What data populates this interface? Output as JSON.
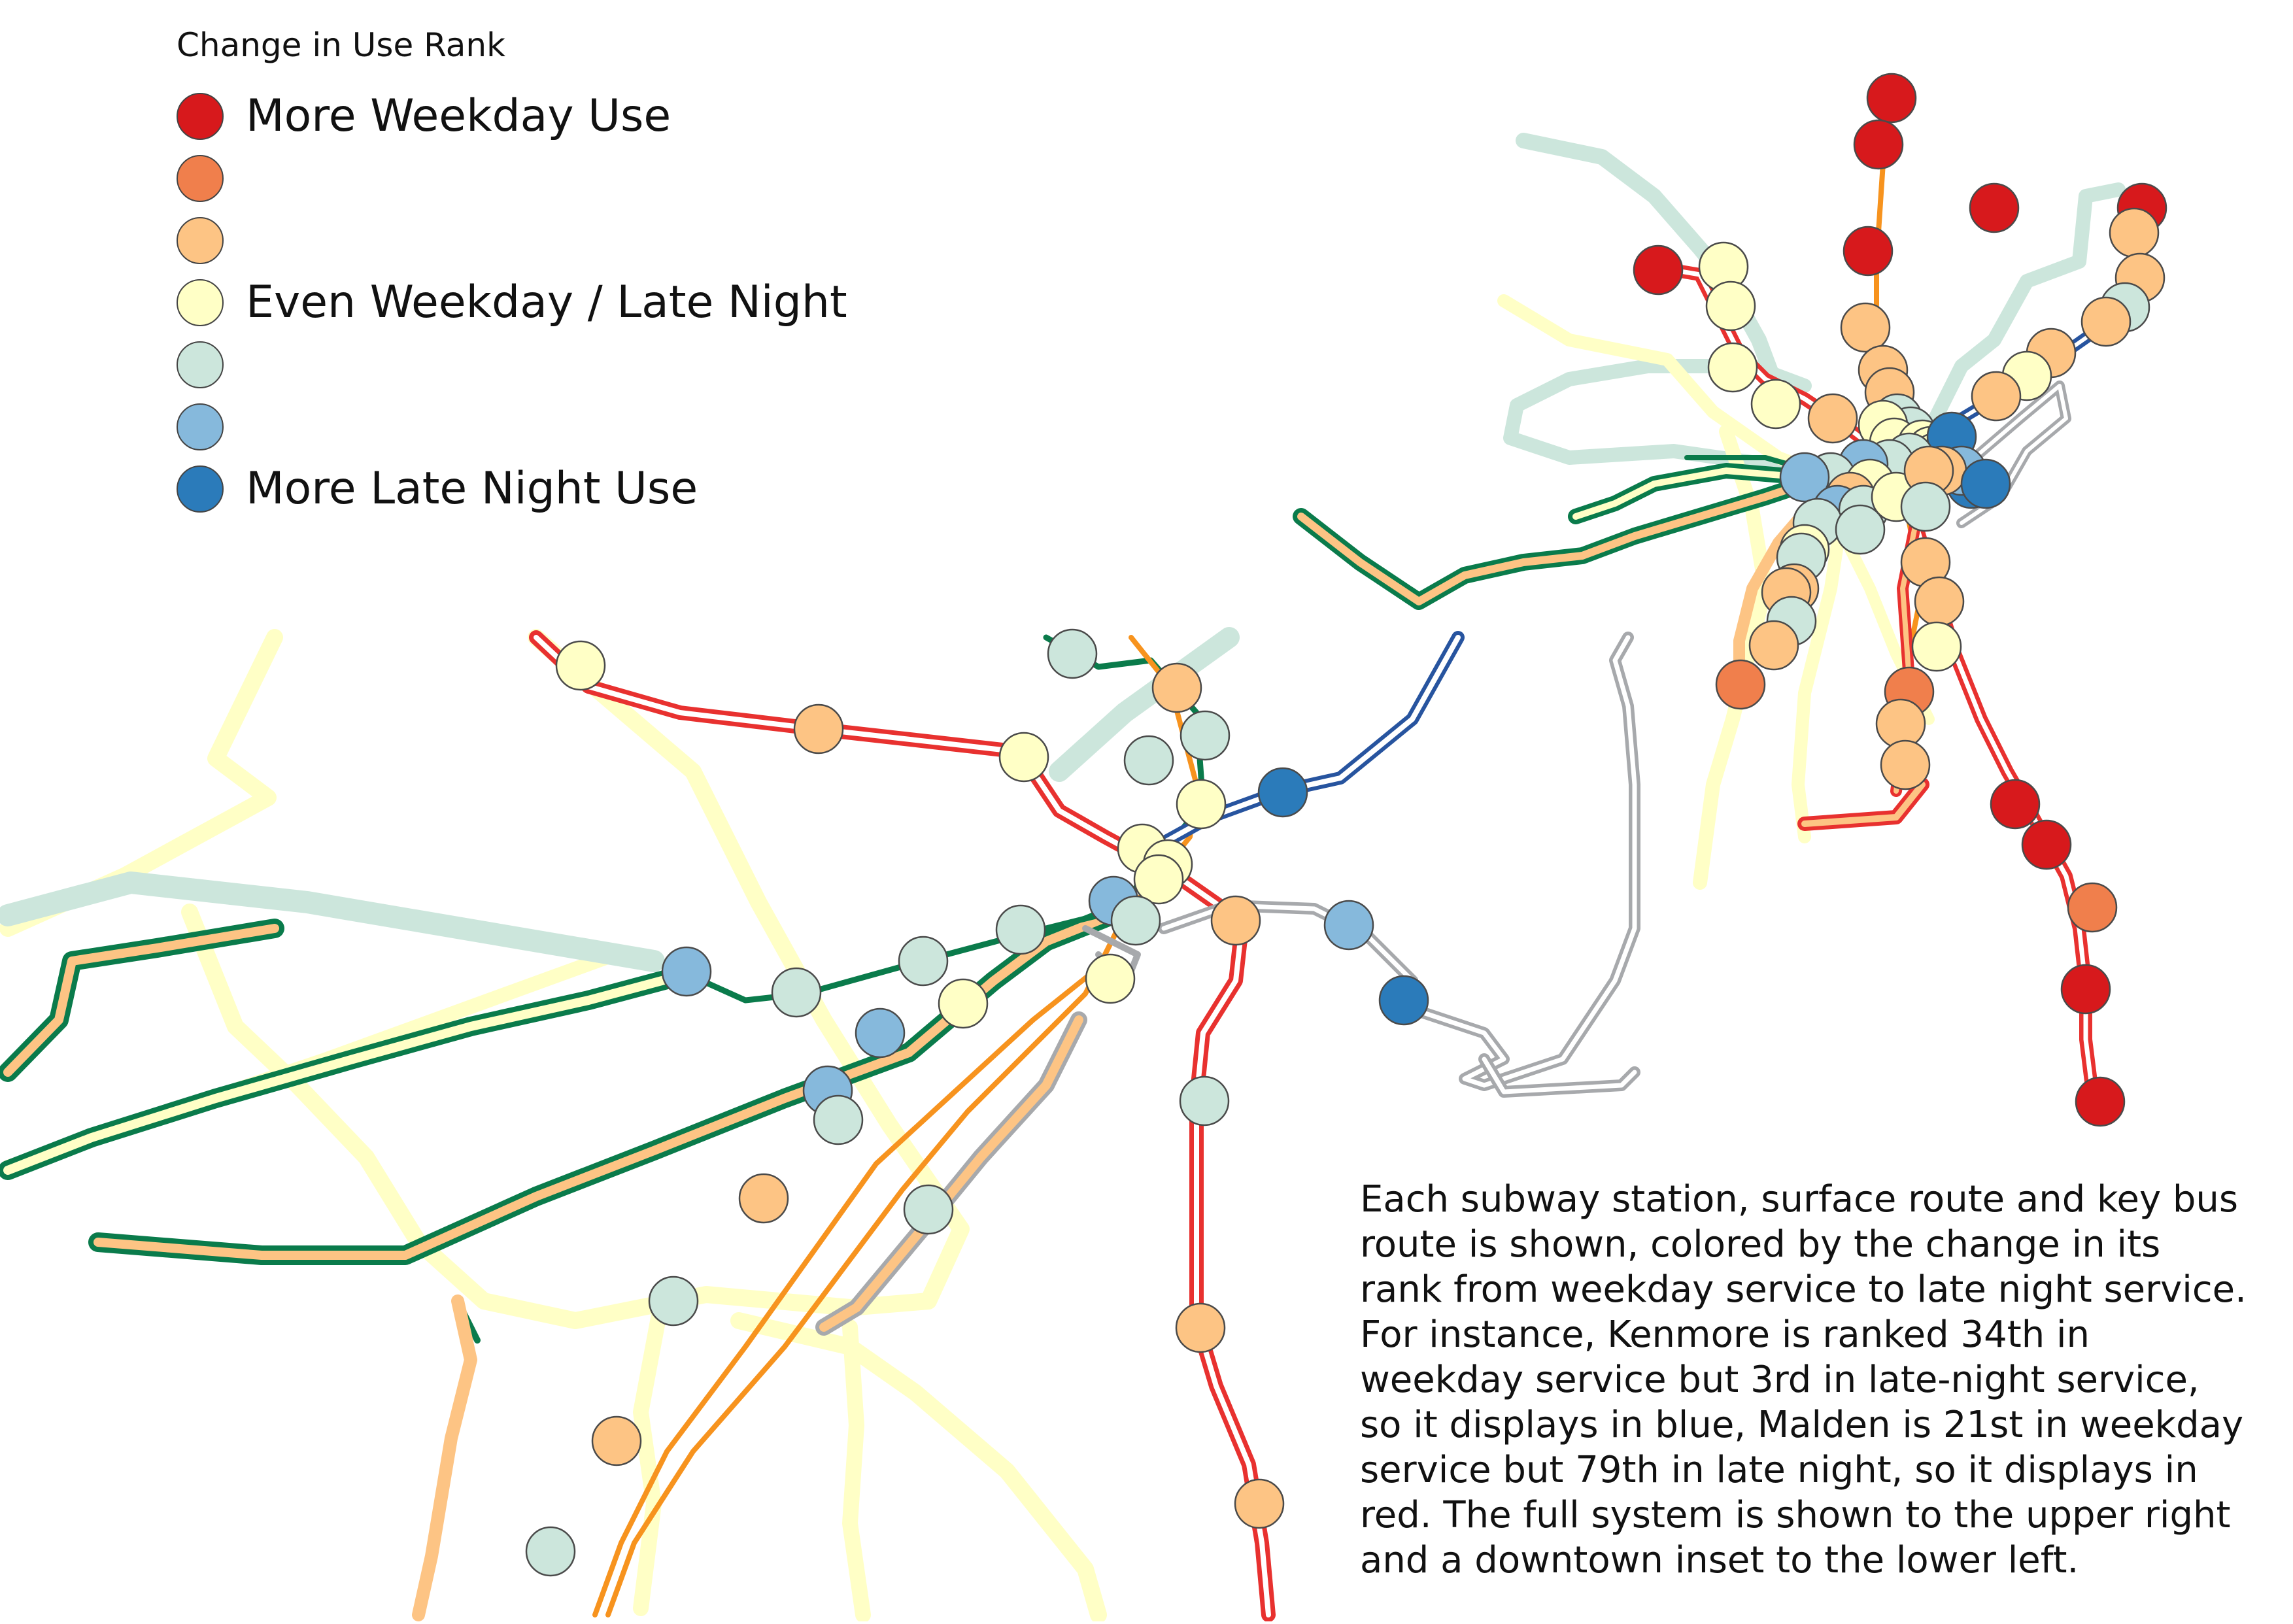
{
  "legend": {
    "title": "Change in Use Rank",
    "items": [
      {
        "label": "More Weekday Use",
        "color": "#d7191c"
      },
      {
        "label": "",
        "color": "#f07f4c"
      },
      {
        "label": "",
        "color": "#fdc484"
      },
      {
        "label": "Even Weekday / Late Night",
        "color": "#ffffc6"
      },
      {
        "label": "",
        "color": "#cce6dc"
      },
      {
        "label": "",
        "color": "#86b9dc"
      },
      {
        "label": "More Late Night Use",
        "color": "#2b7bba"
      }
    ]
  },
  "description": "Each subway station, surface route and key bus\nroute is shown, colored by the change in its\nrank from weekday service to late night service.\nFor instance, Kenmore is ranked 34th in\nweekday service but 3rd in late-night service,\nso it displays in blue, Malden is 21st in weekday\nservice but 79th in late night, so it displays in\nred. The full system is shown to the upper right\nand a downtown inset to the lower left.",
  "line_colors": {
    "red_line": "#e8312f",
    "orange_line": "#f7931e",
    "green_line": "#0a7b4b",
    "blue_line": "#27549f",
    "silver_line": "#a7a9ac",
    "bus_even": "#ffffc6",
    "bus_mint": "#cce6dc",
    "bus_peach": "#fdc484"
  }
}
